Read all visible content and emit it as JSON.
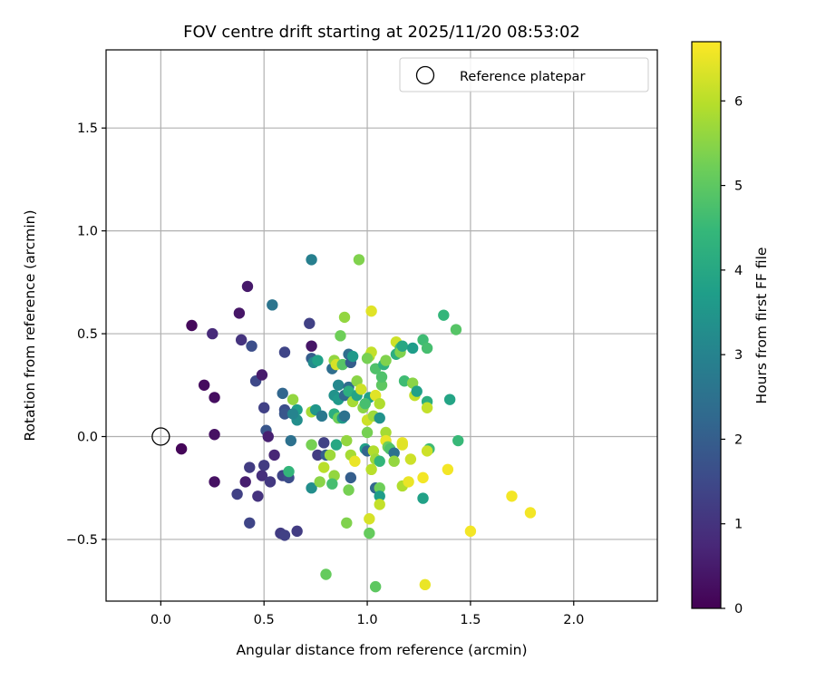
{
  "chart_data": {
    "type": "scatter",
    "title": "FOV centre drift starting at 2025/11/20 08:53:02",
    "xlabel": "Angular distance from reference (arcmin)",
    "ylabel": "Rotation from reference (arcmin)",
    "xlim": [
      -0.265,
      2.405
    ],
    "ylim": [
      -0.8,
      1.88
    ],
    "x_ticks": [
      0.0,
      0.5,
      1.0,
      1.5,
      2.0
    ],
    "x_tick_labels": [
      "0.0",
      "0.5",
      "1.0",
      "1.5",
      "2.0"
    ],
    "y_ticks": [
      -0.5,
      0.0,
      0.5,
      1.0,
      1.5
    ],
    "y_tick_labels": [
      "−0.5",
      "0.0",
      "0.5",
      "1.0",
      "1.5"
    ],
    "grid": true,
    "legend": {
      "position": "top-right",
      "entries": [
        "Reference platepar"
      ]
    },
    "reference_point": {
      "x": 0.0,
      "y": 0.0,
      "label": "Reference platepar"
    },
    "colorbar": {
      "label": "Hours from first FF file",
      "range": [
        0,
        6.7
      ],
      "ticks": [
        0,
        1,
        2,
        3,
        4,
        5,
        6
      ],
      "tick_labels": [
        "0",
        "1",
        "2",
        "3",
        "4",
        "5",
        "6"
      ],
      "colormap": [
        "#440154",
        "#482878",
        "#3e4989",
        "#31688e",
        "#26828e",
        "#1f9e89",
        "#35b779",
        "#6ece58",
        "#b5de2b",
        "#fde725"
      ]
    },
    "points": [
      [
        0.1,
        -0.06,
        0.1
      ],
      [
        0.15,
        0.54,
        0.15
      ],
      [
        0.21,
        0.25,
        0.2
      ],
      [
        0.25,
        0.5,
        0.8
      ],
      [
        0.26,
        0.19,
        0.25
      ],
      [
        0.26,
        0.01,
        0.3
      ],
      [
        0.26,
        -0.22,
        0.3
      ],
      [
        0.38,
        0.6,
        0.4
      ],
      [
        0.42,
        0.73,
        0.45
      ],
      [
        0.39,
        0.47,
        1.0
      ],
      [
        0.44,
        0.44,
        1.6
      ],
      [
        0.46,
        0.27,
        1.5
      ],
      [
        0.49,
        0.3,
        0.5
      ],
      [
        0.5,
        0.14,
        1.3
      ],
      [
        0.51,
        0.03,
        1.8
      ],
      [
        0.52,
        0.0,
        0.6
      ],
      [
        0.55,
        -0.09,
        0.7
      ],
      [
        0.5,
        -0.14,
        1.2
      ],
      [
        0.49,
        -0.19,
        0.9
      ],
      [
        0.53,
        -0.22,
        1.1
      ],
      [
        0.47,
        -0.29,
        1.0
      ],
      [
        0.43,
        -0.15,
        1.2
      ],
      [
        0.37,
        -0.28,
        1.3
      ],
      [
        0.41,
        -0.22,
        0.55
      ],
      [
        0.43,
        -0.42,
        1.4
      ],
      [
        0.58,
        -0.47,
        1.2
      ],
      [
        0.6,
        -0.48,
        1.3
      ],
      [
        0.66,
        -0.46,
        1.2
      ],
      [
        0.54,
        0.64,
        2.6
      ],
      [
        0.6,
        0.41,
        1.4
      ],
      [
        0.59,
        0.21,
        2.2
      ],
      [
        0.6,
        0.13,
        1.6
      ],
      [
        0.6,
        0.11,
        1.8
      ],
      [
        0.63,
        -0.02,
        2.5
      ],
      [
        0.59,
        -0.19,
        1.4
      ],
      [
        0.62,
        -0.2,
        1.6
      ],
      [
        0.62,
        -0.17,
        4.4
      ],
      [
        0.72,
        0.55,
        1.3
      ],
      [
        0.73,
        0.86,
        2.9
      ],
      [
        0.73,
        0.44,
        0.4
      ],
      [
        0.73,
        0.38,
        2.0
      ],
      [
        0.74,
        0.36,
        3.2
      ],
      [
        0.76,
        0.37,
        3.8
      ],
      [
        0.66,
        0.13,
        3.7
      ],
      [
        0.66,
        0.08,
        3.3
      ],
      [
        0.64,
        0.11,
        3.0
      ],
      [
        0.64,
        0.18,
        5.6
      ],
      [
        0.73,
        0.12,
        5.8
      ],
      [
        0.75,
        0.13,
        3.5
      ],
      [
        0.78,
        0.1,
        2.7
      ],
      [
        0.73,
        -0.04,
        5.3
      ],
      [
        0.76,
        -0.09,
        1.2
      ],
      [
        0.79,
        -0.03,
        1.3
      ],
      [
        0.8,
        -0.09,
        2.0
      ],
      [
        0.73,
        -0.25,
        3.3
      ],
      [
        0.77,
        -0.22,
        5.5
      ],
      [
        0.79,
        -0.15,
        6.0
      ],
      [
        0.82,
        -0.09,
        5.7
      ],
      [
        0.85,
        -0.04,
        4.0
      ],
      [
        0.84,
        -0.19,
        5.6
      ],
      [
        0.83,
        -0.23,
        4.7
      ],
      [
        0.8,
        -0.67,
        5.1
      ],
      [
        0.83,
        0.33,
        2.4
      ],
      [
        0.84,
        0.37,
        5.6
      ],
      [
        0.85,
        0.35,
        6.3
      ],
      [
        0.88,
        0.35,
        4.9
      ],
      [
        0.87,
        0.49,
        5.2
      ],
      [
        0.89,
        0.58,
        5.6
      ],
      [
        0.91,
        0.4,
        2.4
      ],
      [
        0.92,
        0.36,
        2.0
      ],
      [
        0.93,
        0.39,
        3.6
      ],
      [
        0.86,
        0.25,
        3.1
      ],
      [
        0.84,
        0.2,
        3.4
      ],
      [
        0.86,
        0.18,
        3.6
      ],
      [
        0.89,
        0.2,
        2.3
      ],
      [
        0.91,
        0.24,
        2.4
      ],
      [
        0.91,
        0.22,
        4.2
      ],
      [
        0.93,
        0.17,
        5.8
      ],
      [
        0.95,
        0.2,
        3.9
      ],
      [
        0.95,
        0.27,
        5.5
      ],
      [
        0.97,
        0.23,
        6.2
      ],
      [
        0.96,
        0.86,
        5.4
      ],
      [
        0.84,
        0.11,
        4.2
      ],
      [
        0.86,
        0.09,
        5.2
      ],
      [
        0.88,
        0.09,
        3.6
      ],
      [
        0.89,
        0.1,
        2.5
      ],
      [
        0.9,
        -0.02,
        5.6
      ],
      [
        0.92,
        -0.09,
        5.8
      ],
      [
        0.94,
        -0.12,
        6.5
      ],
      [
        0.92,
        -0.2,
        2.0
      ],
      [
        0.91,
        -0.26,
        5.3
      ],
      [
        0.9,
        -0.42,
        5.4
      ],
      [
        0.99,
        -0.06,
        3.8
      ],
      [
        1.0,
        -0.07,
        2.2
      ],
      [
        1.0,
        0.02,
        5.3
      ],
      [
        1.0,
        0.08,
        6.2
      ],
      [
        0.98,
        0.14,
        5.5
      ],
      [
        1.01,
        0.19,
        3.8
      ],
      [
        1.01,
        0.39,
        5.8
      ],
      [
        1.02,
        0.41,
        6.1
      ],
      [
        1.02,
        0.61,
        6.4
      ],
      [
        1.04,
        0.33,
        4.8
      ],
      [
        1.0,
        0.38,
        5.3
      ],
      [
        0.99,
        0.16,
        4.7
      ],
      [
        1.03,
        0.1,
        5.7
      ],
      [
        1.04,
        0.2,
        6.4
      ],
      [
        1.06,
        0.16,
        5.9
      ],
      [
        1.06,
        0.09,
        3.4
      ],
      [
        1.03,
        -0.07,
        5.9
      ],
      [
        1.04,
        -0.11,
        5.7
      ],
      [
        1.06,
        -0.12,
        4.4
      ],
      [
        1.02,
        -0.16,
        6.0
      ],
      [
        1.01,
        -0.4,
        6.3
      ],
      [
        1.01,
        -0.47,
        5.1
      ],
      [
        1.04,
        -0.25,
        2.2
      ],
      [
        1.06,
        -0.25,
        5.2
      ],
      [
        1.06,
        -0.29,
        3.7
      ],
      [
        1.06,
        -0.33,
        6.1
      ],
      [
        1.04,
        -0.73,
        5.0
      ],
      [
        1.07,
        0.25,
        5.0
      ],
      [
        1.07,
        0.29,
        4.8
      ],
      [
        1.08,
        0.35,
        4.3
      ],
      [
        1.09,
        0.37,
        5.4
      ],
      [
        1.09,
        0.02,
        5.8
      ],
      [
        1.09,
        -0.02,
        6.5
      ],
      [
        1.1,
        -0.05,
        5.2
      ],
      [
        1.11,
        -0.06,
        4.8
      ],
      [
        1.13,
        -0.08,
        2.5
      ],
      [
        1.13,
        -0.12,
        5.6
      ],
      [
        1.14,
        0.4,
        4.2
      ],
      [
        1.14,
        0.46,
        6.2
      ],
      [
        1.16,
        0.43,
        4.6
      ],
      [
        1.16,
        0.41,
        5.4
      ],
      [
        1.17,
        0.44,
        4.0
      ],
      [
        1.18,
        0.27,
        4.6
      ],
      [
        1.17,
        -0.03,
        6.5
      ],
      [
        1.17,
        -0.04,
        6.4
      ],
      [
        1.17,
        -0.24,
        5.9
      ],
      [
        1.2,
        -0.22,
        6.5
      ],
      [
        1.21,
        -0.11,
        6.2
      ],
      [
        1.22,
        0.43,
        3.7
      ],
      [
        1.22,
        0.26,
        5.5
      ],
      [
        1.23,
        0.2,
        6.1
      ],
      [
        1.24,
        0.22,
        3.8
      ],
      [
        1.27,
        0.47,
        4.6
      ],
      [
        1.29,
        0.43,
        4.7
      ],
      [
        1.29,
        0.17,
        4.2
      ],
      [
        1.29,
        0.14,
        6.1
      ],
      [
        1.3,
        -0.06,
        4.6
      ],
      [
        1.29,
        -0.07,
        6.2
      ],
      [
        1.27,
        -0.2,
        6.6
      ],
      [
        1.27,
        -0.3,
        3.8
      ],
      [
        1.28,
        -0.72,
        6.5
      ],
      [
        1.37,
        0.59,
        4.4
      ],
      [
        1.4,
        0.18,
        3.9
      ],
      [
        1.43,
        0.52,
        4.9
      ],
      [
        1.44,
        -0.02,
        4.5
      ],
      [
        1.39,
        -0.16,
        6.6
      ],
      [
        1.5,
        -0.46,
        6.6
      ],
      [
        1.7,
        -0.29,
        6.6
      ],
      [
        1.79,
        -0.37,
        6.6
      ]
    ]
  }
}
